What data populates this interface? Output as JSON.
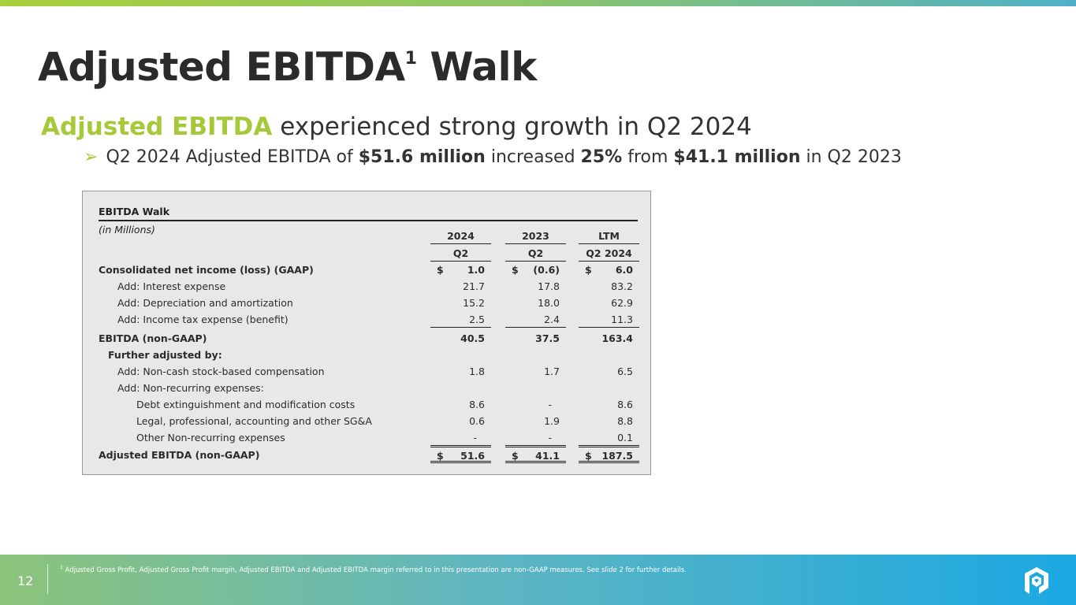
{
  "title": {
    "main": "Adjusted EBITDA",
    "sup": "1",
    "tail": "Walk"
  },
  "subtitle": {
    "highlight": "Adjusted EBITDA",
    "rest": "experienced strong growth in Q2 2024"
  },
  "bullet": {
    "p1": "Q2 2024 Adjusted EBITDA of ",
    "b1": "$51.6 million",
    "p2": " increased ",
    "b2": "25%",
    "p3": " from ",
    "b3": "$41.1 million",
    "p4": " in Q2 2023"
  },
  "table": {
    "title": "EBITDA Walk",
    "units": "(in Millions)",
    "col_years": [
      "2024",
      "2023",
      "LTM"
    ],
    "col_periods": [
      "Q2",
      "Q2",
      "Q2 2024"
    ],
    "rows": [
      {
        "label": "Consolidated net income (loss) (GAAP)",
        "values": [
          "1.0",
          "(0.6)",
          "6.0"
        ],
        "dollar": "$"
      },
      {
        "label": "Add: Interest expense",
        "values": [
          "21.7",
          "17.8",
          "83.2"
        ]
      },
      {
        "label": "Add: Depreciation and amortization",
        "values": [
          "15.2",
          "18.0",
          "62.9"
        ]
      },
      {
        "label": "Add: Income tax expense (benefit)",
        "values": [
          "2.5",
          "2.4",
          "11.3"
        ]
      },
      {
        "label": "EBITDA (non-GAAP)",
        "values": [
          "40.5",
          "37.5",
          "163.4"
        ]
      },
      {
        "label": "Further adjusted by:",
        "values": [
          "",
          "",
          ""
        ]
      },
      {
        "label": "Add: Non-cash stock-based compensation",
        "values": [
          "1.8",
          "1.7",
          "6.5"
        ]
      },
      {
        "label": "Add: Non-recurring expenses:",
        "values": [
          "",
          "",
          ""
        ]
      },
      {
        "label": "Debt extinguishment and modification costs",
        "values": [
          "8.6",
          "-",
          "8.6"
        ]
      },
      {
        "label": "Legal, professional, accounting and other SG&A",
        "values": [
          "0.6",
          "1.9",
          "8.8"
        ]
      },
      {
        "label": "Other Non-recurring expenses",
        "values": [
          "-",
          "-",
          "0.1"
        ]
      },
      {
        "label": "Adjusted EBITDA (non-GAAP)",
        "values": [
          "51.6",
          "41.1",
          "187.5"
        ],
        "dollar": "$"
      }
    ]
  },
  "footer": {
    "page": "12",
    "note_sup": "1",
    "note": "Adjusted Gross Profit, Adjusted Gross Profit margin, Adjusted EBITDA and Adjusted EBITDA margin referred to in this presentation are non-GAAP measures. See slide 2 for further details."
  }
}
